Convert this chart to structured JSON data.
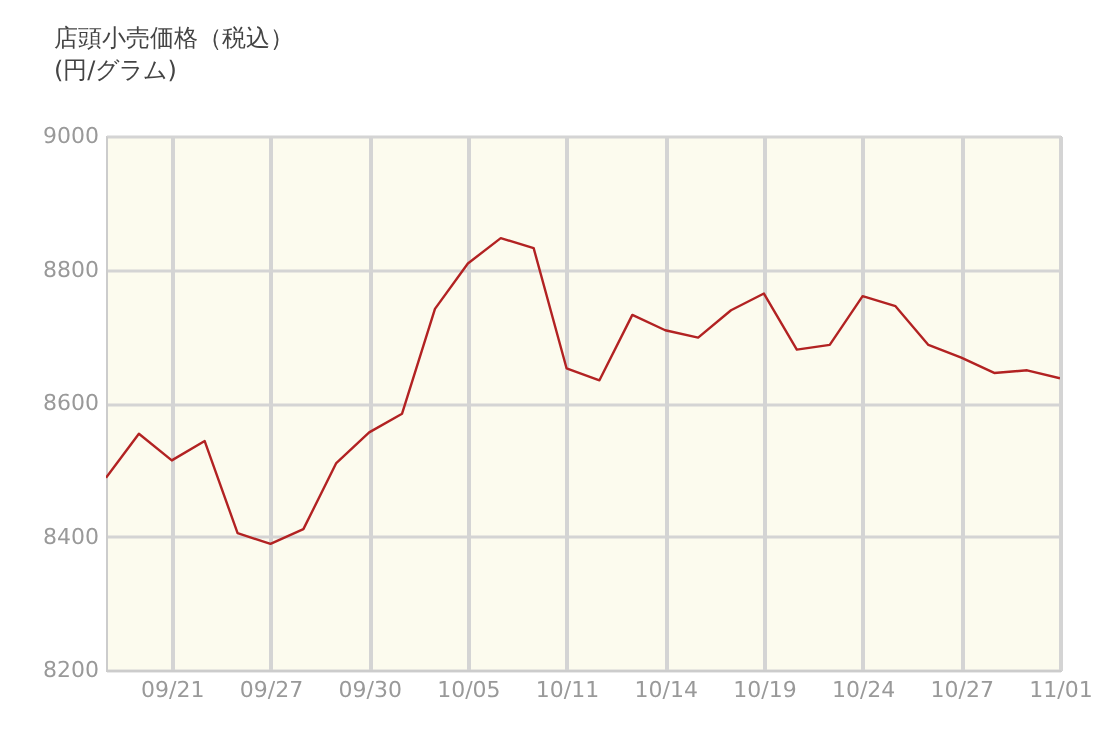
{
  "chart_data": {
    "type": "line",
    "title": "店頭小売価格（税込）",
    "subtitle": "(円/グラム)",
    "categories": [
      null,
      null,
      "09/21",
      null,
      null,
      "09/27",
      null,
      null,
      "09/30",
      null,
      null,
      "10/05",
      null,
      null,
      "10/11",
      null,
      null,
      "10/14",
      null,
      null,
      "10/19",
      null,
      null,
      "10/24",
      null,
      null,
      "10/27",
      null,
      null,
      "11/01"
    ],
    "series": [
      {
        "color": "#b22222",
        "values": [
          8488,
          8554,
          8514,
          8543,
          8405,
          8389,
          8411,
          8510,
          8556,
          8584,
          8741,
          8809,
          8847,
          8832,
          8652,
          8634,
          8732,
          8709,
          8698,
          8739,
          8764,
          8680,
          8687,
          8760,
          8745,
          8687,
          8668,
          8645,
          8649,
          8637
        ]
      }
    ],
    "ylim": [
      8200,
      9000
    ],
    "yticks": [
      8200,
      8400,
      8600,
      8800,
      9000
    ],
    "grid": true
  }
}
